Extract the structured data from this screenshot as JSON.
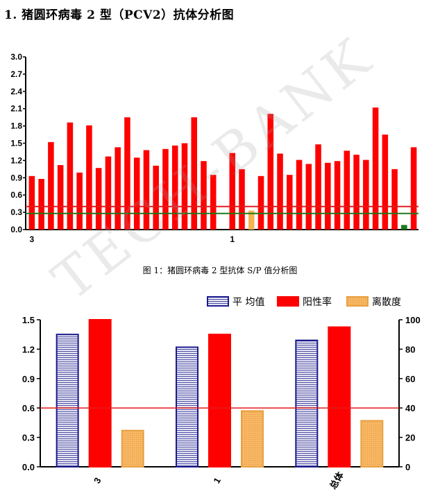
{
  "page": {
    "title": "1.  猪圆环病毒 2 型（PCV2）抗体分析图",
    "watermark": "TECH-BANK"
  },
  "chart_data": [
    {
      "type": "bar",
      "caption": "图 1：猪圆环病毒 2 型抗体 S/P 值分析图",
      "ylim": [
        0,
        3.0
      ],
      "yticks": [
        "0.0",
        "0.3",
        "0.6",
        "0.9",
        "1.2",
        "1.5",
        "1.8",
        "2.1",
        "2.4",
        "2.7",
        "3.0"
      ],
      "group_labels": [
        "3",
        "1"
      ],
      "values": [
        0.93,
        0.88,
        1.52,
        1.12,
        1.86,
        0.99,
        1.81,
        1.07,
        1.27,
        1.43,
        1.95,
        1.25,
        1.38,
        1.11,
        1.4,
        1.46,
        1.5,
        1.95,
        1.19,
        0.95,
        null,
        1.33,
        1.05,
        0.33,
        0.93,
        2.01,
        1.32,
        0.95,
        1.21,
        1.14,
        1.48,
        1.16,
        1.19,
        1.37,
        1.3,
        1.21,
        2.12,
        1.65,
        1.05,
        0.08,
        1.43
      ],
      "highlight": {
        "index": 23,
        "color": "#f5b452"
      },
      "low_index": 39,
      "reference_lines": [
        {
          "value": 0.4,
          "color": "#e41a1c"
        },
        {
          "value": 0.28,
          "color": "#1b7a1b"
        }
      ],
      "bar_color": "#ff0000",
      "low_color": "#1b7a1b"
    },
    {
      "type": "bar",
      "categories": [
        "3",
        "1",
        "总体"
      ],
      "legend": [
        "平 均值",
        "阳性率",
        "离散度"
      ],
      "series": [
        {
          "name": "平 均值",
          "values": [
            1.35,
            1.22,
            1.29
          ],
          "axis": "left",
          "color": "#1a1a8c"
        },
        {
          "name": "阳性率",
          "values": [
            100,
            90,
            95
          ],
          "axis": "right",
          "color": "#ff0000"
        },
        {
          "name": "离散度",
          "values": [
            0.37,
            0.57,
            0.47
          ],
          "axis": "left",
          "color": "#f5b452"
        }
      ],
      "ylim_left": [
        0,
        1.5
      ],
      "yticks_left": [
        "0.0",
        "0.3",
        "0.6",
        "0.9",
        "1.2",
        "1.5"
      ],
      "ylim_right": [
        0,
        100
      ],
      "yticks_right": [
        "0",
        "20",
        "40",
        "60",
        "80",
        "100"
      ],
      "reference_line": {
        "value": 0.6,
        "color": "#e41a1c"
      },
      "legend_position": "top-right"
    }
  ]
}
